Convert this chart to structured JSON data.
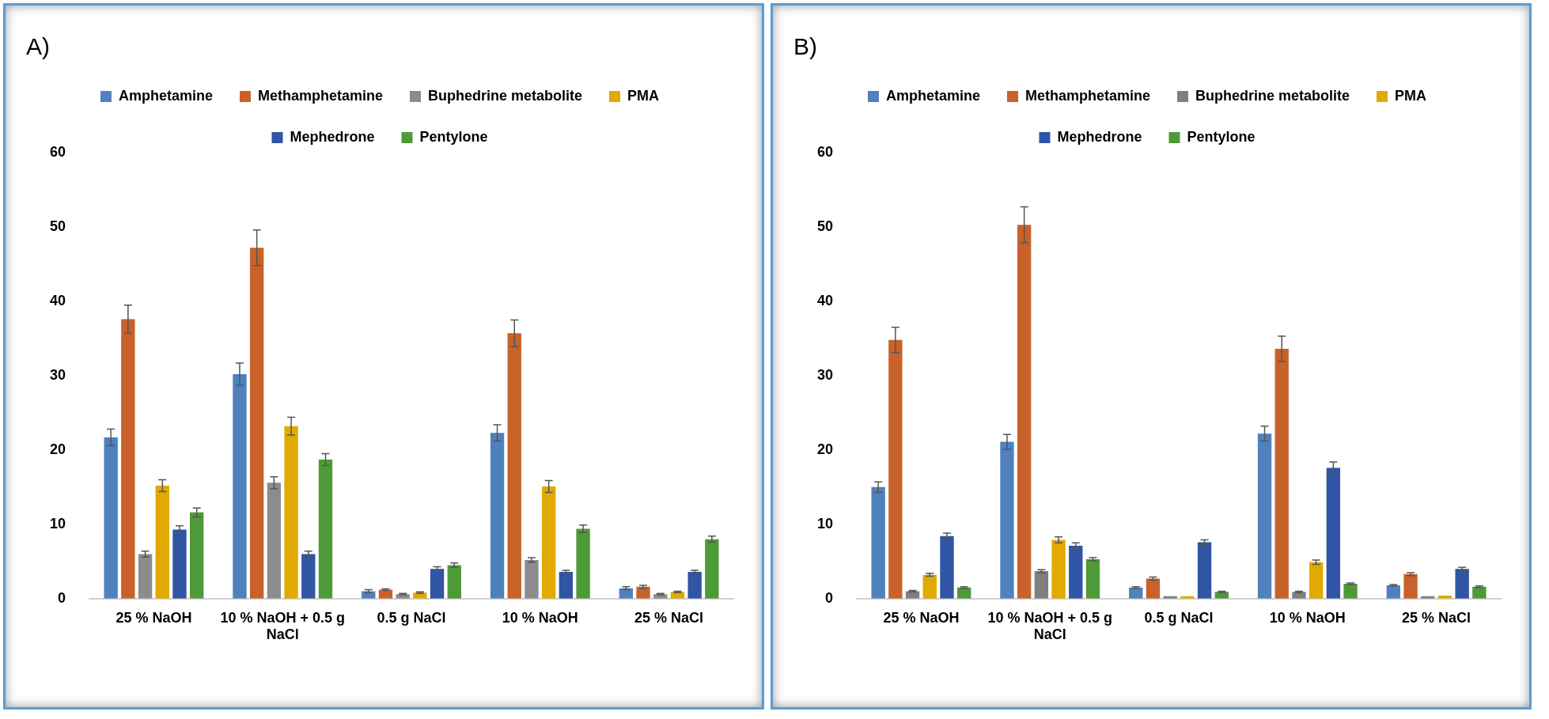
{
  "chart_data": [
    {
      "type": "bar",
      "title": "A)",
      "categories": [
        "25 % NaOH",
        "10 % NaOH + 0.5 g NaCl",
        "0.5 g NaCl",
        "10 % NaOH",
        "25 % NaCl"
      ],
      "ylim": [
        0,
        60
      ],
      "yticks": [
        0,
        10,
        20,
        30,
        40,
        50,
        60
      ],
      "grid": false,
      "legend": "top",
      "series": [
        {
          "name": "Amphetamine",
          "color": "#4f81bd",
          "values": [
            21.7,
            30.2,
            1.0,
            22.3,
            1.4
          ],
          "errors": [
            1.1,
            1.5,
            0.2,
            1.1,
            0.2
          ]
        },
        {
          "name": "Methamphetamine",
          "color": "#c8622a",
          "values": [
            37.6,
            47.2,
            1.2,
            35.7,
            1.6
          ],
          "errors": [
            1.9,
            2.4,
            0.1,
            1.8,
            0.2
          ]
        },
        {
          "name": "Buphedrine metabolite",
          "color": "#8c8c8c",
          "values": [
            6.0,
            15.6,
            0.6,
            5.2,
            0.6
          ],
          "errors": [
            0.4,
            0.8,
            0.1,
            0.3,
            0.1
          ]
        },
        {
          "name": "PMA",
          "color": "#e0aa00",
          "values": [
            15.2,
            23.2,
            0.8,
            15.1,
            0.9
          ],
          "errors": [
            0.8,
            1.2,
            0.1,
            0.8,
            0.1
          ]
        },
        {
          "name": "Mephedrone",
          "color": "#2f55a4",
          "values": [
            9.3,
            6.0,
            4.0,
            3.6,
            3.6
          ],
          "errors": [
            0.5,
            0.4,
            0.3,
            0.2,
            0.2
          ]
        },
        {
          "name": "Pentylone",
          "color": "#4e9a38",
          "values": [
            11.6,
            18.7,
            4.5,
            9.4,
            8.0
          ],
          "errors": [
            0.6,
            0.8,
            0.3,
            0.5,
            0.4
          ]
        }
      ]
    },
    {
      "type": "bar",
      "title": "B)",
      "categories": [
        "25 % NaOH",
        "10 % NaOH + 0.5 g NaCl",
        "0.5 g NaCl",
        "10 % NaOH",
        "25 % NaCl"
      ],
      "ylim": [
        0,
        60
      ],
      "yticks": [
        0,
        10,
        20,
        30,
        40,
        50,
        60
      ],
      "grid": false,
      "legend": "top",
      "series": [
        {
          "name": "Amphetamine",
          "color": "#4f81bd",
          "values": [
            15.0,
            21.1,
            1.5,
            22.2,
            1.8
          ],
          "errors": [
            0.7,
            1.0,
            0.1,
            1.0,
            0.1
          ]
        },
        {
          "name": "Methamphetamine",
          "color": "#c8622a",
          "values": [
            34.8,
            50.3,
            2.7,
            33.6,
            3.3
          ],
          "errors": [
            1.7,
            2.4,
            0.2,
            1.7,
            0.2
          ]
        },
        {
          "name": "Buphedrine metabolite",
          "color": "#7f7f7f",
          "values": [
            1.0,
            3.7,
            0.1,
            0.9,
            0.1
          ],
          "errors": [
            0.1,
            0.2,
            null,
            0.1,
            null
          ]
        },
        {
          "name": "PMA",
          "color": "#e0aa00",
          "values": [
            3.2,
            7.9,
            0.3,
            4.9,
            0.4
          ],
          "errors": [
            0.2,
            0.4,
            null,
            0.3,
            null
          ]
        },
        {
          "name": "Mephedrone",
          "color": "#2f55a4",
          "values": [
            8.4,
            7.1,
            7.6,
            17.6,
            4.0
          ],
          "errors": [
            0.4,
            0.4,
            0.3,
            0.8,
            0.2
          ]
        },
        {
          "name": "Pentylone",
          "color": "#4e9a38",
          "values": [
            1.5,
            5.3,
            0.9,
            2.0,
            1.6
          ],
          "errors": [
            0.1,
            0.2,
            0.1,
            0.1,
            0.1
          ]
        }
      ]
    }
  ]
}
